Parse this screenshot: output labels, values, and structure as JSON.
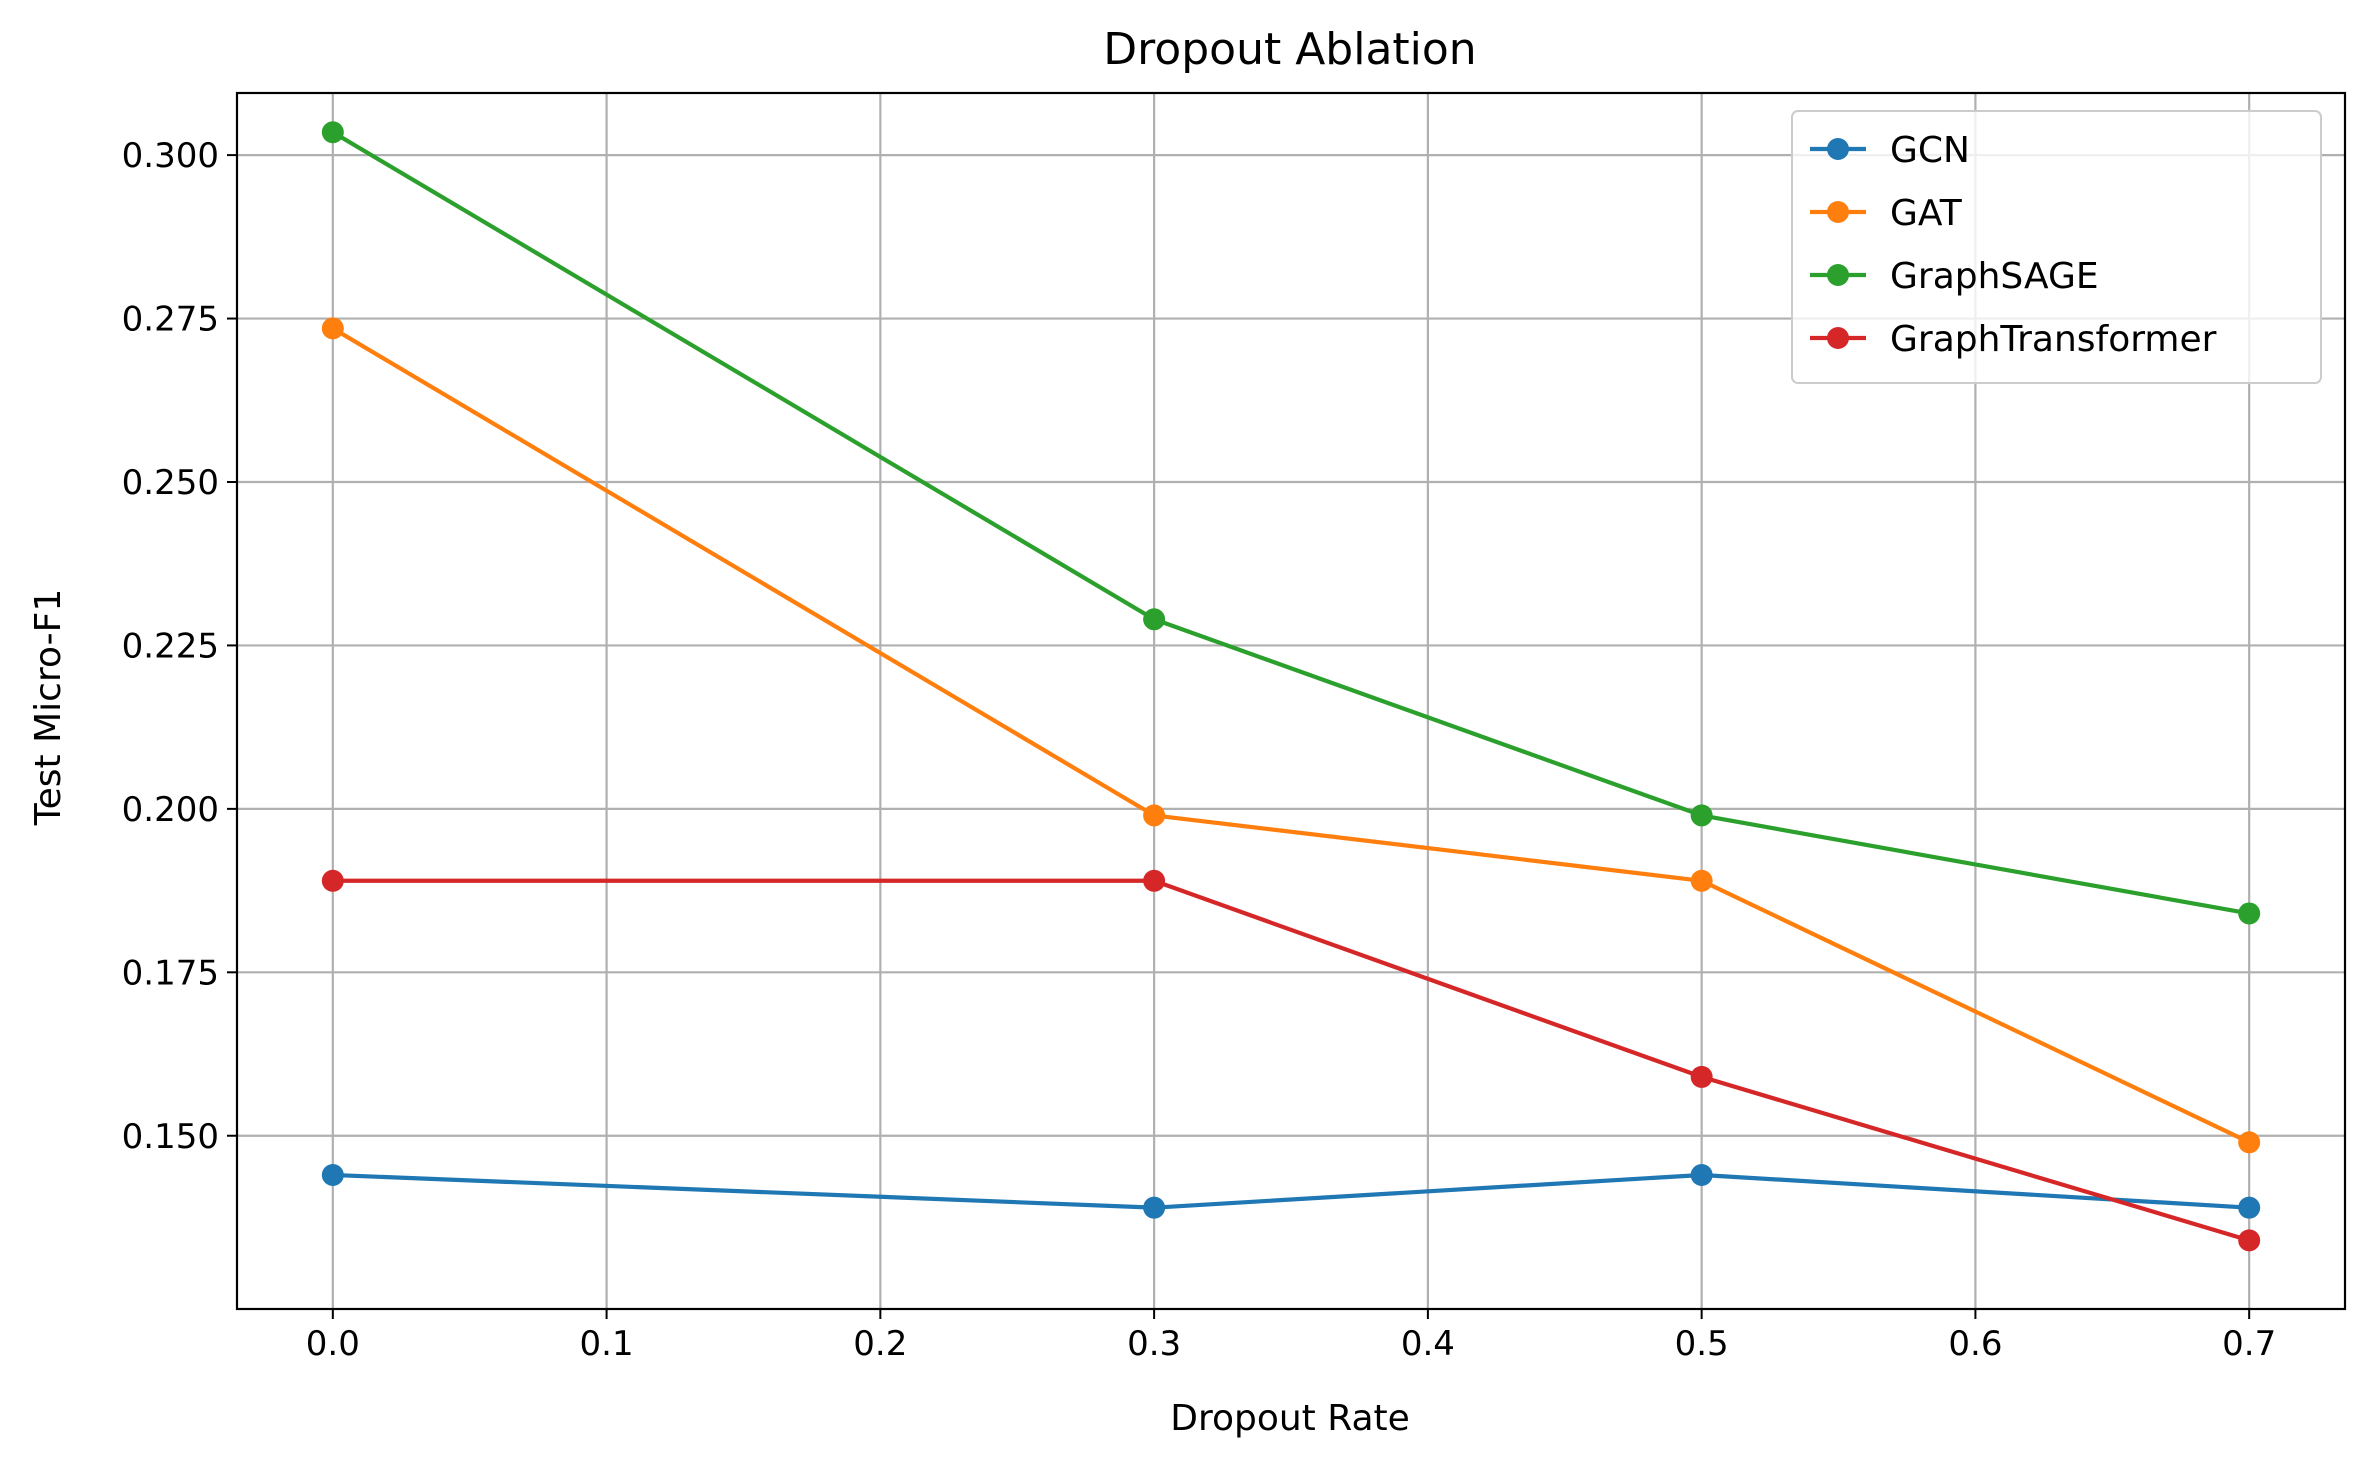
{
  "chart_data": {
    "type": "line",
    "title": "Dropout Ablation",
    "xlabel": "Dropout Rate",
    "ylabel": "Test Micro-F1",
    "x": [
      0.0,
      0.3,
      0.5,
      0.7
    ],
    "xlim": [
      -0.035,
      0.735
    ],
    "ylim": [
      0.1235,
      0.3095
    ],
    "xticks": [
      0.0,
      0.1,
      0.2,
      0.3,
      0.4,
      0.5,
      0.6,
      0.7
    ],
    "xtick_labels": [
      "0.0",
      "0.1",
      "0.2",
      "0.3",
      "0.4",
      "0.5",
      "0.6",
      "0.7"
    ],
    "yticks": [
      0.15,
      0.175,
      0.2,
      0.225,
      0.25,
      0.275,
      0.3
    ],
    "ytick_labels": [
      "0.150",
      "0.175",
      "0.200",
      "0.225",
      "0.250",
      "0.275",
      "0.300"
    ],
    "grid": true,
    "legend_position": "top-right",
    "series": [
      {
        "name": "GCN",
        "color": "#1f77b4",
        "values": [
          0.144,
          0.139,
          0.144,
          0.139
        ]
      },
      {
        "name": "GAT",
        "color": "#ff7f0e",
        "values": [
          0.2735,
          0.199,
          0.189,
          0.149
        ]
      },
      {
        "name": "GraphSAGE",
        "color": "#2ca02c",
        "values": [
          0.3035,
          0.229,
          0.199,
          0.184
        ]
      },
      {
        "name": "GraphTransformer",
        "color": "#d62728",
        "values": [
          0.189,
          0.189,
          0.159,
          0.134
        ]
      }
    ]
  }
}
